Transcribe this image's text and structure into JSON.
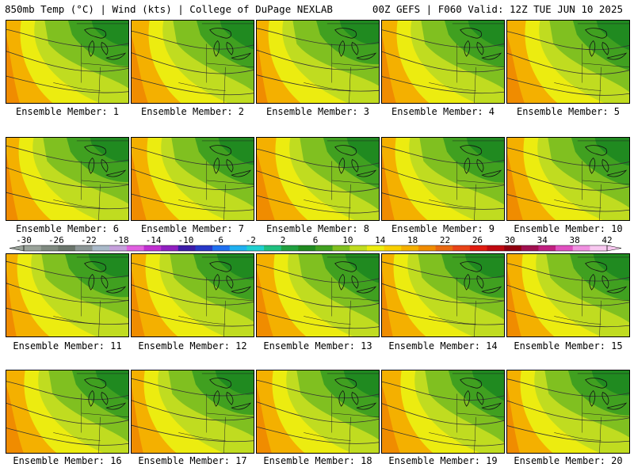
{
  "header": {
    "left": "850mb Temp (°C) | Wind (kts) | College of DuPage NEXLAB",
    "right": "00Z GEFS | F060 Valid: 12Z TUE JUN 10 2025"
  },
  "member_label_prefix": "Ensemble Member:",
  "members": [
    1,
    2,
    3,
    4,
    5,
    6,
    7,
    8,
    9,
    10,
    11,
    12,
    13,
    14,
    15,
    16,
    17,
    18,
    19,
    20
  ],
  "colorbar": {
    "tick_labels": [
      "-30",
      "-26",
      "-22",
      "-18",
      "-14",
      "-10",
      "-6",
      "-2",
      "2",
      "6",
      "10",
      "14",
      "18",
      "22",
      "26",
      "30",
      "34",
      "38",
      "42"
    ],
    "colors": [
      "#9aa39a",
      "#7f8a80",
      "#6a756b",
      "#8c9696",
      "#a9b9c9",
      "#c6a0dc",
      "#e060e0",
      "#c030d0",
      "#9020c0",
      "#3c1ca8",
      "#2838c8",
      "#2070f0",
      "#20b0f0",
      "#20d0d0",
      "#20c080",
      "#20a040",
      "#208a20",
      "#40a020",
      "#80c020",
      "#c0dc20",
      "#ecec10",
      "#f8d000",
      "#f4b000",
      "#f08c00",
      "#e86810",
      "#e84418",
      "#e01c10",
      "#c00810",
      "#900010",
      "#a01050",
      "#c02080",
      "#e050c0",
      "#f090e0",
      "#f8c8f0"
    ]
  },
  "map_colors": {
    "warm": "#f08c00",
    "orange": "#f4b000",
    "yellow": "#ecec10",
    "yellow_green": "#c0dc20",
    "light_green": "#80c020",
    "green": "#40a020",
    "dark_green": "#208a20"
  }
}
